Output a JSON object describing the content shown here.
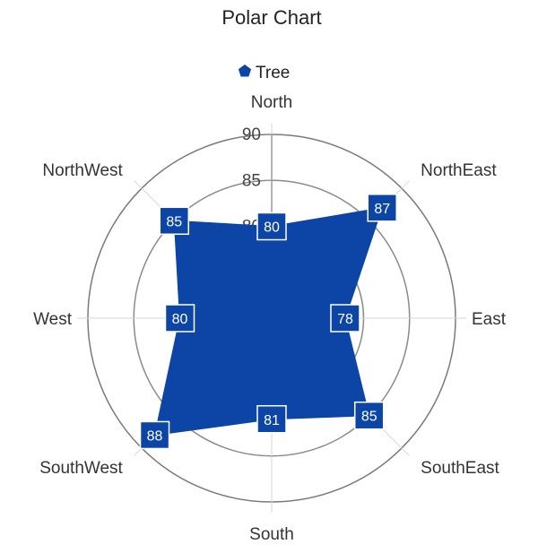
{
  "chart_data": {
    "type": "polar",
    "title": "Polar Chart",
    "legend": {
      "position": "top",
      "entries": [
        "Tree"
      ]
    },
    "categories": [
      "North",
      "NorthEast",
      "East",
      "SouthEast",
      "South",
      "SouthWest",
      "West",
      "NorthWest"
    ],
    "series": [
      {
        "name": "Tree",
        "values": [
          80,
          87,
          78,
          85,
          81,
          88,
          80,
          85
        ],
        "color": "#0c45a6"
      }
    ],
    "radial_axis": {
      "range": [
        70,
        90
      ],
      "ticks": [
        "75",
        "80",
        "85",
        "90"
      ]
    },
    "grid": true,
    "data_labels": true
  }
}
